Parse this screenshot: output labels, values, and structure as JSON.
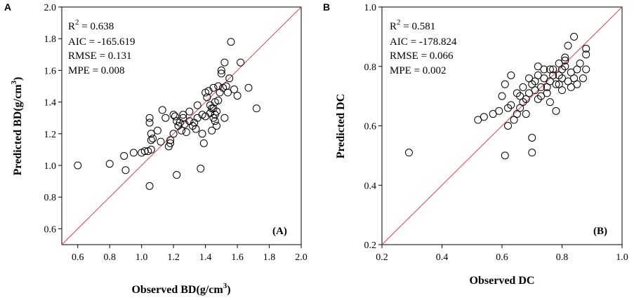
{
  "chart_data": [
    {
      "type": "scatter",
      "panel_letter": "A",
      "tag": "(A)",
      "xlim": [
        0.5,
        2.0
      ],
      "ylim": [
        0.5,
        2.0
      ],
      "xticks": [
        "0.6",
        "0.8",
        "1.0",
        "1.2",
        "1.4",
        "1.6",
        "1.8",
        "2.0"
      ],
      "yticks": [
        "0.6",
        "0.8",
        "1.0",
        "1.2",
        "1.4",
        "1.6",
        "1.8",
        "2.0"
      ],
      "xlabel": {
        "main": "Observed BD(g/cm",
        "sup": "3",
        "tail": ")"
      },
      "ylabel": {
        "main": "Predicted BD(g/cm",
        "sup": "3",
        "tail": ")"
      },
      "stats": {
        "r2_label": "R",
        "r2_sup": "2",
        "r2_value": " = 0.638",
        "aic": "AIC = -165.619",
        "rmse": "RMSE = 0.131",
        "mpe": "MPE = 0.008"
      },
      "reference_line": "1:1",
      "line_color": "#d9434f",
      "points": [
        [
          0.6,
          1.0
        ],
        [
          0.8,
          1.01
        ],
        [
          0.9,
          0.97
        ],
        [
          0.89,
          1.06
        ],
        [
          0.95,
          1.08
        ],
        [
          1.0,
          1.08
        ],
        [
          1.02,
          1.09
        ],
        [
          1.04,
          1.09
        ],
        [
          1.06,
          1.1
        ],
        [
          1.05,
          0.87
        ],
        [
          1.05,
          1.3
        ],
        [
          1.05,
          1.27
        ],
        [
          1.06,
          1.2
        ],
        [
          1.06,
          1.16
        ],
        [
          1.07,
          1.17
        ],
        [
          1.1,
          1.22
        ],
        [
          1.12,
          1.15
        ],
        [
          1.13,
          1.35
        ],
        [
          1.15,
          1.3
        ],
        [
          1.17,
          1.12
        ],
        [
          1.18,
          1.16
        ],
        [
          1.2,
          1.2
        ],
        [
          1.2,
          1.32
        ],
        [
          1.21,
          1.31
        ],
        [
          1.22,
          1.28
        ],
        [
          1.22,
          0.94
        ],
        [
          1.23,
          1.25
        ],
        [
          1.24,
          1.27
        ],
        [
          1.25,
          1.22
        ],
        [
          1.26,
          1.3
        ],
        [
          1.27,
          1.26
        ],
        [
          1.28,
          1.21
        ],
        [
          1.3,
          1.28
        ],
        [
          1.3,
          1.34
        ],
        [
          1.32,
          1.25
        ],
        [
          1.33,
          1.27
        ],
        [
          1.34,
          1.23
        ],
        [
          1.35,
          1.38
        ],
        [
          1.35,
          1.3
        ],
        [
          1.37,
          0.98
        ],
        [
          1.38,
          1.32
        ],
        [
          1.38,
          1.2
        ],
        [
          1.39,
          1.14
        ],
        [
          1.4,
          1.31
        ],
        [
          1.4,
          1.46
        ],
        [
          1.41,
          1.43
        ],
        [
          1.42,
          1.47
        ],
        [
          1.43,
          1.38
        ],
        [
          1.44,
          1.36
        ],
        [
          1.44,
          1.22
        ],
        [
          1.45,
          1.3
        ],
        [
          1.45,
          1.36
        ],
        [
          1.45,
          1.49
        ],
        [
          1.46,
          1.32
        ],
        [
          1.46,
          1.28
        ],
        [
          1.47,
          1.25
        ],
        [
          1.47,
          1.34
        ],
        [
          1.48,
          1.41
        ],
        [
          1.48,
          1.5
        ],
        [
          1.49,
          1.46
        ],
        [
          1.5,
          1.58
        ],
        [
          1.5,
          1.6
        ],
        [
          1.51,
          1.49
        ],
        [
          1.52,
          1.65
        ],
        [
          1.53,
          1.5
        ],
        [
          1.54,
          1.46
        ],
        [
          1.55,
          1.55
        ],
        [
          1.56,
          1.78
        ],
        [
          1.58,
          1.48
        ],
        [
          1.6,
          1.44
        ],
        [
          1.62,
          1.65
        ],
        [
          1.67,
          1.49
        ],
        [
          1.72,
          1.36
        ],
        [
          1.52,
          1.3
        ],
        [
          1.26,
          1.32
        ],
        [
          1.18,
          1.14
        ],
        [
          1.46,
          1.4
        ],
        [
          1.43,
          1.33
        ]
      ]
    },
    {
      "type": "scatter",
      "panel_letter": "B",
      "tag": "(B)",
      "xlim": [
        0.2,
        1.0
      ],
      "ylim": [
        0.2,
        1.0
      ],
      "xticks": [
        "0.2",
        "0.4",
        "0.6",
        "0.8",
        "1.0"
      ],
      "yticks": [
        "0.2",
        "0.4",
        "0.6",
        "0.8",
        "1.0"
      ],
      "xlabel": {
        "main": "Observed DC",
        "sup": "",
        "tail": ""
      },
      "ylabel": {
        "main": "Predicted DC",
        "sup": "",
        "tail": ""
      },
      "stats": {
        "r2_label": "R",
        "r2_sup": "2",
        "r2_value": " = 0.581",
        "aic": "AIC = -178.824",
        "rmse": "RMSE = 0.066",
        "mpe": "MPE = 0.002"
      },
      "reference_line": "1:1",
      "line_color": "#d9434f",
      "points": [
        [
          0.29,
          0.51
        ],
        [
          0.52,
          0.62
        ],
        [
          0.54,
          0.63
        ],
        [
          0.57,
          0.64
        ],
        [
          0.59,
          0.65
        ],
        [
          0.6,
          0.7
        ],
        [
          0.61,
          0.5
        ],
        [
          0.62,
          0.6
        ],
        [
          0.62,
          0.66
        ],
        [
          0.63,
          0.67
        ],
        [
          0.64,
          0.62
        ],
        [
          0.65,
          0.64
        ],
        [
          0.66,
          0.66
        ],
        [
          0.66,
          0.7
        ],
        [
          0.67,
          0.68
        ],
        [
          0.67,
          0.73
        ],
        [
          0.68,
          0.69
        ],
        [
          0.69,
          0.71
        ],
        [
          0.7,
          0.56
        ],
        [
          0.7,
          0.51
        ],
        [
          0.7,
          0.74
        ],
        [
          0.71,
          0.72
        ],
        [
          0.71,
          0.75
        ],
        [
          0.72,
          0.69
        ],
        [
          0.72,
          0.77
        ],
        [
          0.73,
          0.7
        ],
        [
          0.73,
          0.73
        ],
        [
          0.74,
          0.76
        ],
        [
          0.74,
          0.79
        ],
        [
          0.75,
          0.71
        ],
        [
          0.75,
          0.73
        ],
        [
          0.76,
          0.75
        ],
        [
          0.76,
          0.68
        ],
        [
          0.77,
          0.77
        ],
        [
          0.77,
          0.79
        ],
        [
          0.78,
          0.65
        ],
        [
          0.78,
          0.74
        ],
        [
          0.79,
          0.81
        ],
        [
          0.79,
          0.77
        ],
        [
          0.8,
          0.72
        ],
        [
          0.8,
          0.76
        ],
        [
          0.8,
          0.79
        ],
        [
          0.81,
          0.8
        ],
        [
          0.81,
          0.83
        ],
        [
          0.82,
          0.87
        ],
        [
          0.82,
          0.75
        ],
        [
          0.83,
          0.78
        ],
        [
          0.83,
          0.73
        ],
        [
          0.84,
          0.9
        ],
        [
          0.84,
          0.76
        ],
        [
          0.85,
          0.79
        ],
        [
          0.85,
          0.74
        ],
        [
          0.86,
          0.81
        ],
        [
          0.87,
          0.76
        ],
        [
          0.88,
          0.84
        ],
        [
          0.88,
          0.86
        ],
        [
          0.88,
          0.79
        ],
        [
          0.61,
          0.74
        ],
        [
          0.63,
          0.77
        ],
        [
          0.65,
          0.71
        ],
        [
          0.68,
          0.64
        ],
        [
          0.69,
          0.76
        ],
        [
          0.72,
          0.8
        ],
        [
          0.76,
          0.79
        ],
        [
          0.79,
          0.74
        ],
        [
          0.81,
          0.82
        ]
      ]
    }
  ]
}
